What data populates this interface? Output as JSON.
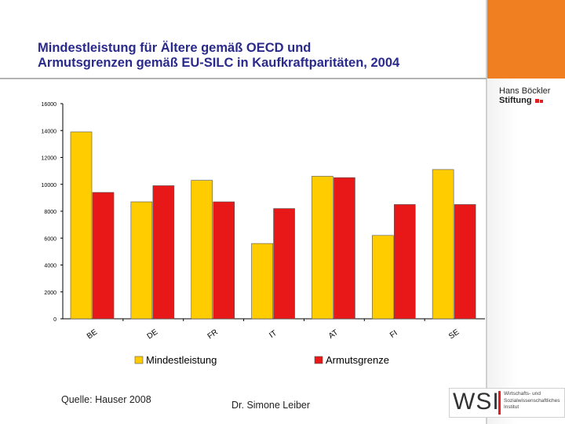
{
  "title": {
    "line1": "Mindestleistung für Ältere gemäß OECD und",
    "line2": "Armutsgrenzen gemäß EU-SILC in Kaufkraftparitäten, 2004"
  },
  "logo_hbs": {
    "line1": "Hans Böckler",
    "line2": "Stiftung"
  },
  "chart_data": {
    "type": "bar",
    "title": "",
    "xlabel": "",
    "ylabel": "",
    "ylim": [
      0,
      16000
    ],
    "yticks": [
      0,
      2000,
      4000,
      6000,
      8000,
      10000,
      12000,
      14000,
      16000
    ],
    "categories": [
      "BE",
      "DE",
      "FR",
      "IT",
      "AT",
      "FI",
      "SE"
    ],
    "series": [
      {
        "name": "Mindestleistung",
        "color": "#ffcc00",
        "values": [
          13900,
          8700,
          10300,
          5600,
          10600,
          6200,
          11100
        ]
      },
      {
        "name": "Armutsgrenze",
        "color": "#e81818",
        "values": [
          9400,
          9900,
          8700,
          8200,
          10500,
          8500,
          8500
        ]
      }
    ],
    "legend_position": "bottom",
    "grid": false
  },
  "footer": {
    "source": "Quelle: Hauser 2008",
    "author": "Dr. Simone Leiber"
  },
  "logo_wsi": {
    "letters": "WSI",
    "line1": "Wirtschafts- und",
    "line2": "Sozialwissenschaftliches",
    "line3": "Institut"
  }
}
